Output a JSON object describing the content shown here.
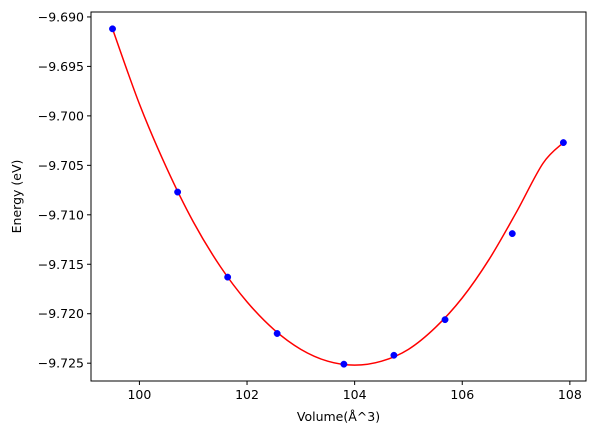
{
  "chart_data": {
    "type": "scatter",
    "title": "",
    "xlabel": "Volume(Å^3)",
    "ylabel": "Energy (eV)",
    "xlim": [
      99.1,
      108.3
    ],
    "ylim": [
      -9.7268,
      -9.6895
    ],
    "x_ticks": [
      100,
      102,
      104,
      106,
      108
    ],
    "y_ticks": [
      -9.69,
      -9.695,
      -9.7,
      -9.705,
      -9.71,
      -9.715,
      -9.72,
      -9.725
    ],
    "x_tick_labels": [
      "100",
      "102",
      "104",
      "106",
      "108"
    ],
    "y_tick_labels": [
      "−9.690",
      "−9.695",
      "−9.700",
      "−9.705",
      "−9.710",
      "−9.715",
      "−9.720",
      "−9.725"
    ],
    "grid": false,
    "series": [
      {
        "type": "scatter",
        "color": "#0000ff",
        "x": [
          99.5,
          100.71,
          101.64,
          102.56,
          103.8,
          104.73,
          105.68,
          106.93,
          107.88
        ],
        "y": [
          -9.6912,
          -9.7077,
          -9.7163,
          -9.722,
          -9.7251,
          -9.7242,
          -9.7206,
          -9.7119,
          -9.7027
        ]
      },
      {
        "type": "line",
        "color": "#ff0000",
        "x": [
          99.5,
          100.0,
          100.5,
          101.0,
          101.5,
          102.0,
          102.5,
          103.0,
          103.5,
          104.0,
          104.5,
          105.0,
          105.5,
          106.0,
          106.5,
          107.0,
          107.5,
          107.88
        ],
        "y": [
          -9.6912,
          -9.6988,
          -9.7052,
          -9.7107,
          -9.7152,
          -9.7188,
          -9.7216,
          -9.7236,
          -9.7248,
          -9.7252,
          -9.7248,
          -9.7236,
          -9.7214,
          -9.7184,
          -9.7145,
          -9.7098,
          -9.7048,
          -9.7027
        ]
      }
    ]
  }
}
